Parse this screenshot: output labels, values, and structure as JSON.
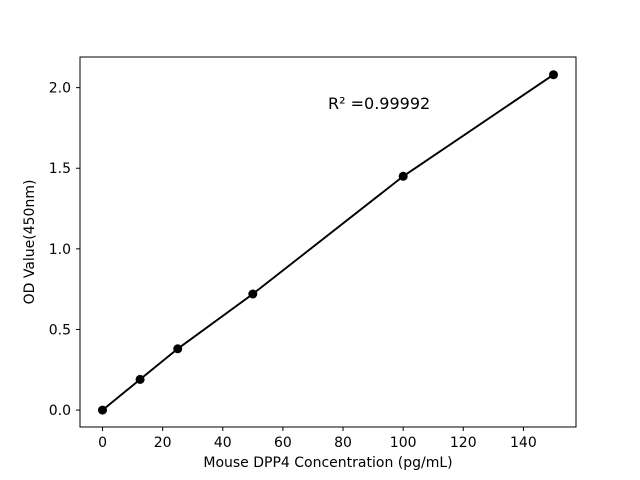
{
  "chart_data": {
    "type": "line",
    "title": "",
    "xlabel": "Mouse DPP4 Concentration (pg/mL)",
    "ylabel": "OD Value(450nm)",
    "x": [
      0,
      12.5,
      25,
      50,
      100,
      150
    ],
    "y": [
      0.0,
      0.19,
      0.38,
      0.72,
      1.45,
      2.08
    ],
    "xticks": [
      "0",
      "20",
      "40",
      "60",
      "80",
      "100",
      "120",
      "140"
    ],
    "xtick_values": [
      0,
      20,
      40,
      60,
      80,
      100,
      120,
      140
    ],
    "yticks": [
      "0.0",
      "0.5",
      "1.0",
      "1.5",
      "2.0"
    ],
    "ytick_values": [
      0.0,
      0.5,
      1.0,
      1.5,
      2.0
    ],
    "xlim": [
      -7.5,
      157.5
    ],
    "ylim": [
      -0.105,
      2.19
    ],
    "annotation": {
      "text": "R² =0.99992"
    },
    "line_color": "#000000",
    "marker_color": "#000000",
    "axis_color": "#000000",
    "background_color": "#ffffff",
    "grid": false,
    "legend": "none",
    "marker_style": "filled-circle"
  }
}
